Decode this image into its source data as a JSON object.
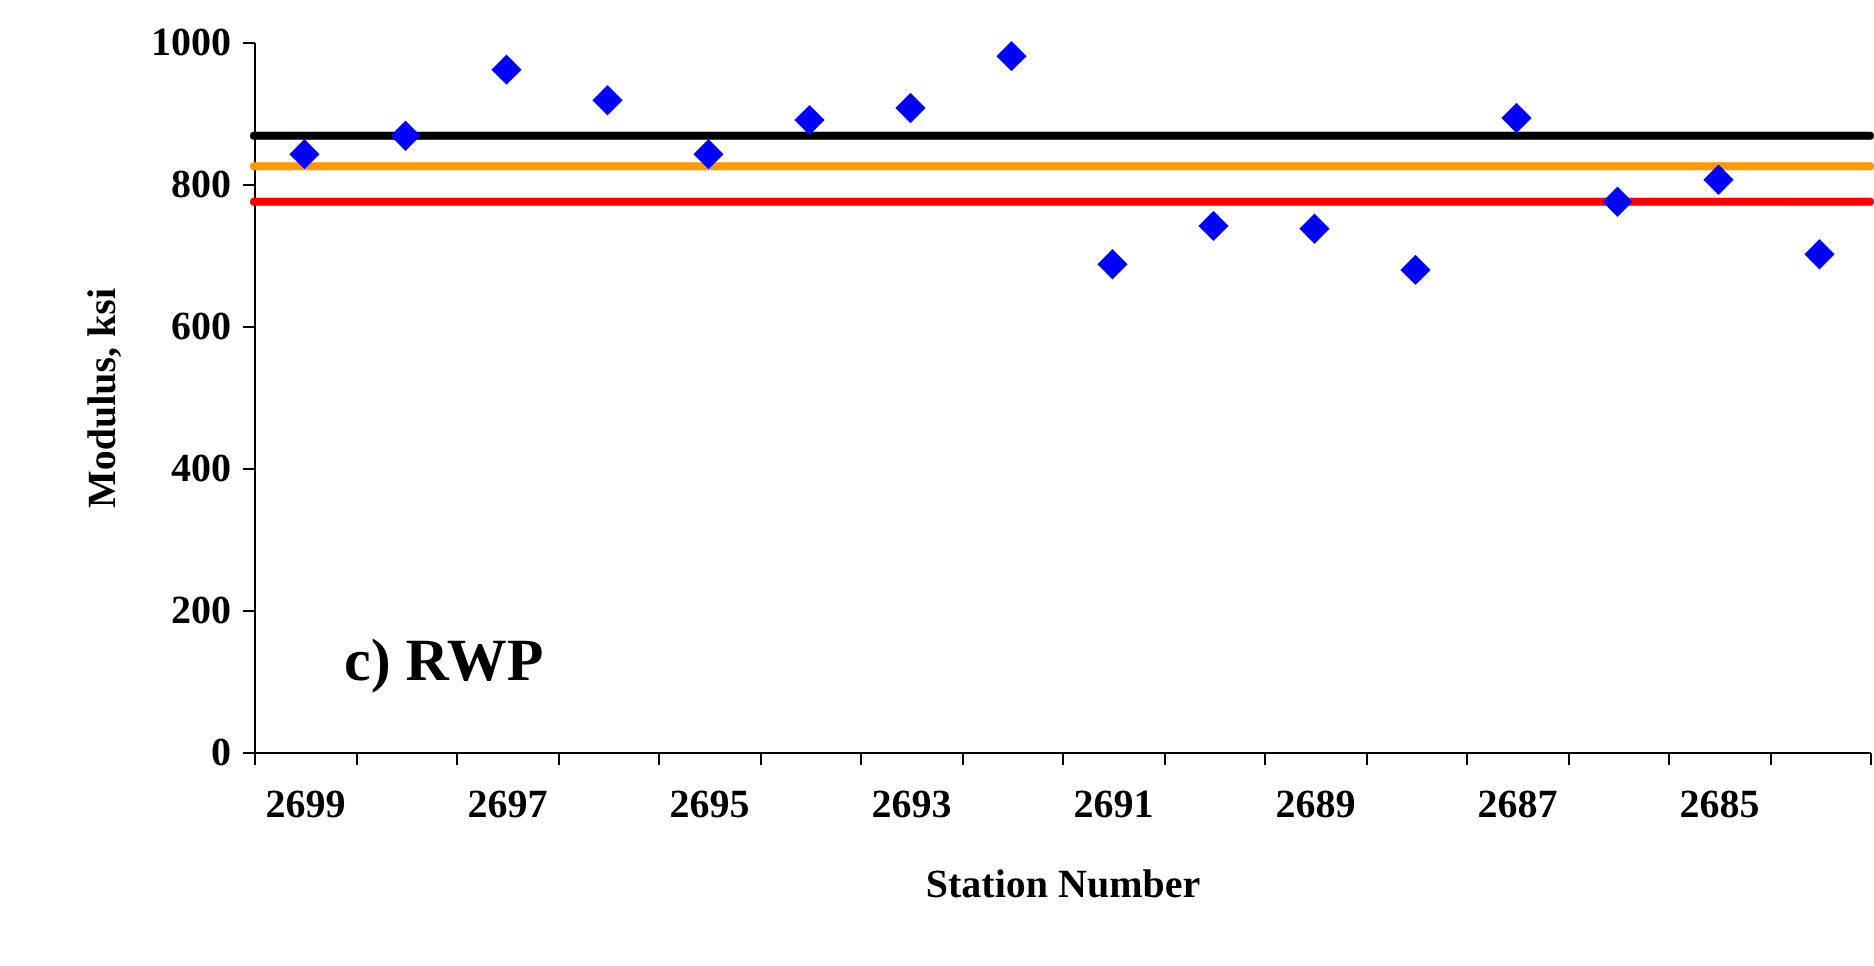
{
  "chart_data": {
    "type": "scatter",
    "xlabel": "Station Number",
    "ylabel": "Modulus, ksi",
    "categories": [
      "2699",
      null,
      "2697",
      null,
      "2695",
      null,
      "2693",
      null,
      "2691",
      null,
      "2689",
      null,
      "2687",
      null,
      "2685",
      null
    ],
    "series": [
      {
        "color": "#0000ff",
        "values": [
          842,
          868,
          961,
          918,
          842,
          890,
          907,
          980,
          687,
          741,
          737,
          679,
          893,
          775,
          806,
          701
        ]
      }
    ],
    "marker": "diamond",
    "ylim": [
      0,
      1000
    ],
    "yticks": [
      0,
      200,
      400,
      600,
      800,
      1000
    ],
    "grid": false,
    "ref_lines": [
      {
        "axis": "y",
        "value": 868,
        "color": "#000000"
      },
      {
        "axis": "y",
        "value": 825,
        "color": "#ff9900"
      },
      {
        "axis": "y",
        "value": 775,
        "color": "#ff0000"
      }
    ],
    "annotations": [
      "c) RWP"
    ]
  }
}
